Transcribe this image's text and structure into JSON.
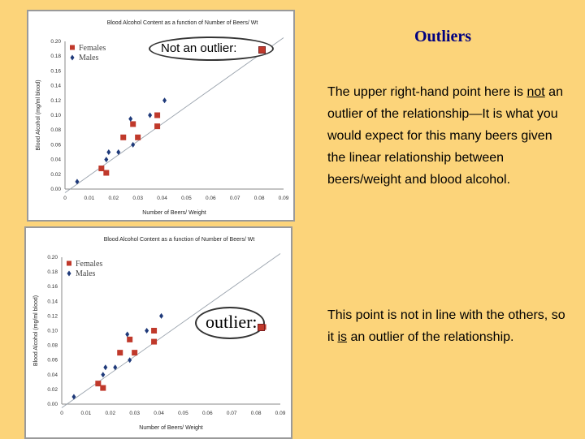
{
  "slide": {
    "title": "Outliers",
    "callout_top": "Not an outlier:",
    "callout_bottom": "outlier:",
    "text_top": {
      "before": "The upper right-hand point here is ",
      "underlined": "not",
      "after": " an outlier of the relationship—It is what you would expect for this many beers given the linear relationship between beers/weight and blood alcohol."
    },
    "text_bottom": {
      "before": "This point is not in line with the others, so it ",
      "underlined": "is",
      "after": " an outlier of the relationship."
    },
    "colors": {
      "background": "#fcd47a",
      "title": "#000080",
      "females": "#c0392b",
      "males": "#1f3a7a"
    }
  },
  "chart_data": [
    {
      "type": "scatter",
      "title": "Blood Alcohol Content as a function of Number of Beers/ Wt",
      "xlabel": "Number of Beers/ Weight",
      "ylabel": "Blood Alcohol (mg/ml blood)",
      "xlim": [
        0,
        0.09
      ],
      "ylim": [
        0,
        0.2
      ],
      "xticks": [
        "0",
        "0.01",
        "0.02",
        "0.03",
        "0.04",
        "0.05",
        "0.06",
        "0.07",
        "0.08",
        "0.09"
      ],
      "yticks": [
        "0.00",
        "0.02",
        "0.04",
        "0.06",
        "0.08",
        "0.10",
        "0.12",
        "0.14",
        "0.16",
        "0.18",
        "0.20"
      ],
      "legend": "top-left",
      "series": [
        {
          "name": "Females",
          "marker": "square",
          "x": [
            0.015,
            0.017,
            0.024,
            0.028,
            0.03,
            0.038,
            0.038
          ],
          "y": [
            0.028,
            0.022,
            0.07,
            0.088,
            0.07,
            0.1,
            0.085
          ]
        },
        {
          "name": "Males",
          "marker": "diamond",
          "x": [
            0.005,
            0.017,
            0.018,
            0.022,
            0.027,
            0.028,
            0.035,
            0.041
          ],
          "y": [
            0.01,
            0.04,
            0.05,
            0.05,
            0.095,
            0.06,
            0.1,
            0.12
          ]
        }
      ],
      "trendline": {
        "x": [
          0,
          0.09
        ],
        "y": [
          -0.005,
          0.205
        ]
      }
    },
    {
      "type": "scatter",
      "title": "Blood Alcohol Content as a function of Number of Beers/ Wt",
      "xlabel": "Number of Beers/ Weight",
      "ylabel": "Blood Alcohol (mg/ml blood)",
      "xlim": [
        0,
        0.09
      ],
      "ylim": [
        0,
        0.2
      ],
      "xticks": [
        "0",
        "0.01",
        "0.02",
        "0.03",
        "0.04",
        "0.05",
        "0.06",
        "0.07",
        "0.08",
        "0.09"
      ],
      "yticks": [
        "0.00",
        "0.02",
        "0.04",
        "0.06",
        "0.08",
        "0.10",
        "0.12",
        "0.14",
        "0.16",
        "0.18",
        "0.20"
      ],
      "legend": "top-left",
      "series": [
        {
          "name": "Females",
          "marker": "square",
          "x": [
            0.015,
            0.017,
            0.024,
            0.028,
            0.03,
            0.038,
            0.038,
            0.083
          ],
          "y": [
            0.028,
            0.022,
            0.07,
            0.088,
            0.07,
            0.1,
            0.085,
            0.105
          ]
        },
        {
          "name": "Males",
          "marker": "diamond",
          "x": [
            0.005,
            0.017,
            0.018,
            0.022,
            0.027,
            0.028,
            0.035,
            0.041
          ],
          "y": [
            0.01,
            0.04,
            0.05,
            0.05,
            0.095,
            0.06,
            0.1,
            0.12
          ]
        }
      ],
      "trendline": {
        "x": [
          0,
          0.09
        ],
        "y": [
          -0.005,
          0.205
        ]
      }
    }
  ]
}
